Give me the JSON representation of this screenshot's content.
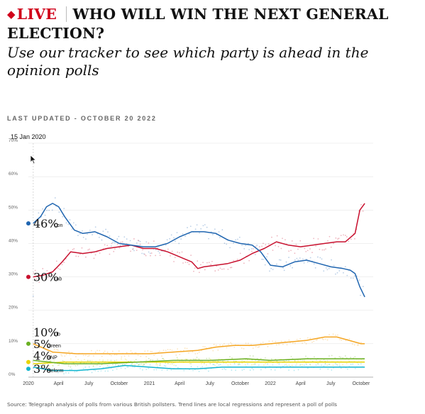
{
  "header": {
    "live_label": "LIVE",
    "headline": "WHO WILL WIN THE NEXT GENERAL ELECTION?",
    "subtitle": "Use our tracker to see which party is ahead in the opinion polls",
    "live_color": "#d0021b",
    "live_icon": "diamond-icon"
  },
  "last_updated": "LAST UPDATED - OCTOBER 20 2022",
  "date_readout": "15 Jan 2020",
  "source": "Source: Telegraph analysis of polls from various British pollsters. Trend lines are local regressions and represent a poll of polls",
  "cursor_icon": "mouse-pointer-icon",
  "chart_data": {
    "type": "line",
    "ylim": [
      0,
      70
    ],
    "y_ticks": [
      0,
      10,
      20,
      30,
      40,
      50,
      60,
      70
    ],
    "y_tick_labels": [
      "0%",
      "10%",
      "20%",
      "30%",
      "40%",
      "50%",
      "60%",
      "70%"
    ],
    "xlim": [
      2020.0,
      2022.85
    ],
    "x_ticks": [
      2020.0,
      2020.25,
      2020.5,
      2020.75,
      2021.0,
      2021.25,
      2021.5,
      2021.75,
      2022.0,
      2022.25,
      2022.5,
      2022.75
    ],
    "x_tick_labels": [
      "2020",
      "April",
      "July",
      "October",
      "2021",
      "April",
      "July",
      "October",
      "2022",
      "April",
      "July",
      "October"
    ],
    "grid": "horizontal",
    "scatter_points": "individual polls shown as faint dots around each trend line",
    "series": [
      {
        "name": "Con",
        "color": "#1f65b0",
        "label_value": "46%",
        "x": [
          2020.04,
          2020.1,
          2020.15,
          2020.2,
          2020.25,
          2020.3,
          2020.38,
          2020.45,
          2020.55,
          2020.65,
          2020.75,
          2020.85,
          2020.95,
          2021.05,
          2021.15,
          2021.25,
          2021.35,
          2021.45,
          2021.55,
          2021.65,
          2021.75,
          2021.85,
          2021.92,
          2022.0,
          2022.1,
          2022.2,
          2022.3,
          2022.4,
          2022.5,
          2022.6,
          2022.66,
          2022.7,
          2022.74,
          2022.78
        ],
        "values": [
          46,
          48,
          51,
          52,
          51,
          48,
          44,
          43,
          43.5,
          42,
          40,
          39.5,
          39,
          39,
          40,
          42,
          43.5,
          43.5,
          43,
          41,
          40,
          39.5,
          37.5,
          33.5,
          33,
          34.5,
          35,
          34,
          33,
          32.5,
          32,
          31,
          27,
          24
        ]
      },
      {
        "name": "Lab",
        "color": "#c8102e",
        "label_value": "30%",
        "x": [
          2020.04,
          2020.12,
          2020.2,
          2020.28,
          2020.35,
          2020.45,
          2020.55,
          2020.65,
          2020.75,
          2020.85,
          2020.95,
          2021.05,
          2021.15,
          2021.25,
          2021.35,
          2021.4,
          2021.45,
          2021.55,
          2021.65,
          2021.75,
          2021.85,
          2021.95,
          2022.05,
          2022.15,
          2022.25,
          2022.35,
          2022.45,
          2022.55,
          2022.62,
          2022.7,
          2022.74,
          2022.78
        ],
        "values": [
          30,
          30.5,
          31.5,
          34.5,
          37.5,
          37,
          37.5,
          38.5,
          39,
          39.5,
          38.5,
          38.5,
          37.5,
          36,
          34.5,
          32.5,
          33,
          33.5,
          34,
          35,
          37,
          38.5,
          40.5,
          39.5,
          39,
          39.5,
          40,
          40.5,
          40.5,
          43,
          50,
          52
        ]
      },
      {
        "name": "Lib",
        "color": "#f5a623",
        "label_value": "10%",
        "x": [
          2020.04,
          2020.2,
          2020.4,
          2020.6,
          2020.8,
          2021.0,
          2021.2,
          2021.4,
          2021.55,
          2021.7,
          2021.85,
          2022.0,
          2022.15,
          2022.3,
          2022.45,
          2022.55,
          2022.65,
          2022.75,
          2022.78
        ],
        "values": [
          10,
          7.5,
          7,
          7,
          7,
          7,
          7.5,
          8,
          9,
          9.5,
          9.5,
          10,
          10.5,
          11,
          12,
          12,
          11,
          10,
          10
        ]
      },
      {
        "name": "Green",
        "color": "#6ab023",
        "label_value": "5%",
        "x": [
          2020.04,
          2020.3,
          2020.6,
          2020.9,
          2021.2,
          2021.5,
          2021.8,
          2022.0,
          2022.3,
          2022.6,
          2022.78
        ],
        "values": [
          5,
          4,
          4,
          4.5,
          5,
          5,
          5.5,
          5,
          5.5,
          5.5,
          5.5
        ]
      },
      {
        "name": "SNP",
        "color": "#e8d400",
        "label_value": "4%",
        "x": [
          2020.04,
          2020.3,
          2020.6,
          2020.9,
          2021.2,
          2021.5,
          2021.8,
          2022.1,
          2022.4,
          2022.78
        ],
        "values": [
          4,
          4.5,
          4.5,
          4.5,
          4.5,
          4.5,
          4.5,
          4.5,
          4.5,
          4.5
        ]
      },
      {
        "name": "Reform",
        "color": "#12b6cf",
        "label_value": "3%",
        "x": [
          2020.04,
          2020.2,
          2020.4,
          2020.6,
          2020.8,
          2021.0,
          2021.2,
          2021.4,
          2021.6,
          2021.8,
          2022.0,
          2022.2,
          2022.4,
          2022.6,
          2022.78
        ],
        "values": [
          3,
          2,
          2,
          2.5,
          3.5,
          3,
          2.5,
          2.5,
          3,
          3,
          3,
          3,
          3,
          3,
          3
        ]
      }
    ]
  }
}
